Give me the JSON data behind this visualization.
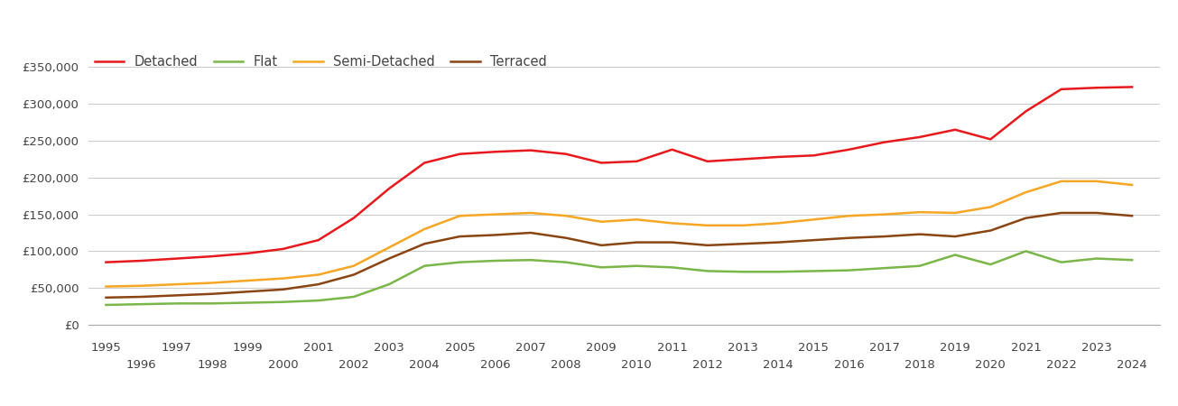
{
  "years": [
    1995,
    1996,
    1997,
    1998,
    1999,
    2000,
    2001,
    2002,
    2003,
    2004,
    2005,
    2006,
    2007,
    2008,
    2009,
    2010,
    2011,
    2012,
    2013,
    2014,
    2015,
    2016,
    2017,
    2018,
    2019,
    2020,
    2021,
    2022,
    2023,
    2024
  ],
  "detached": [
    85000,
    87000,
    90000,
    93000,
    97000,
    103000,
    115000,
    145000,
    185000,
    220000,
    232000,
    235000,
    237000,
    232000,
    220000,
    222000,
    238000,
    222000,
    225000,
    228000,
    230000,
    238000,
    248000,
    255000,
    265000,
    252000,
    290000,
    320000,
    322000,
    323000
  ],
  "flat": [
    27000,
    28000,
    29000,
    29000,
    30000,
    31000,
    33000,
    38000,
    55000,
    80000,
    85000,
    87000,
    88000,
    85000,
    78000,
    80000,
    78000,
    73000,
    72000,
    72000,
    73000,
    74000,
    77000,
    80000,
    95000,
    82000,
    100000,
    85000,
    90000,
    88000
  ],
  "semi_detached": [
    52000,
    53000,
    55000,
    57000,
    60000,
    63000,
    68000,
    80000,
    105000,
    130000,
    148000,
    150000,
    152000,
    148000,
    140000,
    143000,
    138000,
    135000,
    135000,
    138000,
    143000,
    148000,
    150000,
    153000,
    152000,
    160000,
    180000,
    195000,
    195000,
    190000
  ],
  "terraced": [
    37000,
    38000,
    40000,
    42000,
    45000,
    48000,
    55000,
    68000,
    90000,
    110000,
    120000,
    122000,
    125000,
    118000,
    108000,
    112000,
    112000,
    108000,
    110000,
    112000,
    115000,
    118000,
    120000,
    123000,
    120000,
    128000,
    145000,
    152000,
    152000,
    148000
  ],
  "colors": {
    "detached": "#e8191c",
    "flat": "#7ab648",
    "semi_detached": "#f5a623",
    "terraced": "#8B4513"
  },
  "ylim": [
    0,
    375000
  ],
  "yticks": [
    0,
    50000,
    100000,
    150000,
    200000,
    250000,
    300000,
    350000
  ],
  "xlim": [
    1994.5,
    2024.8
  ],
  "grid_color": "#cccccc",
  "line_width": 1.8,
  "spine_color": "#aaaaaa",
  "label_color": "#444444",
  "tick_fontsize": 9.5,
  "legend_fontsize": 10.5
}
